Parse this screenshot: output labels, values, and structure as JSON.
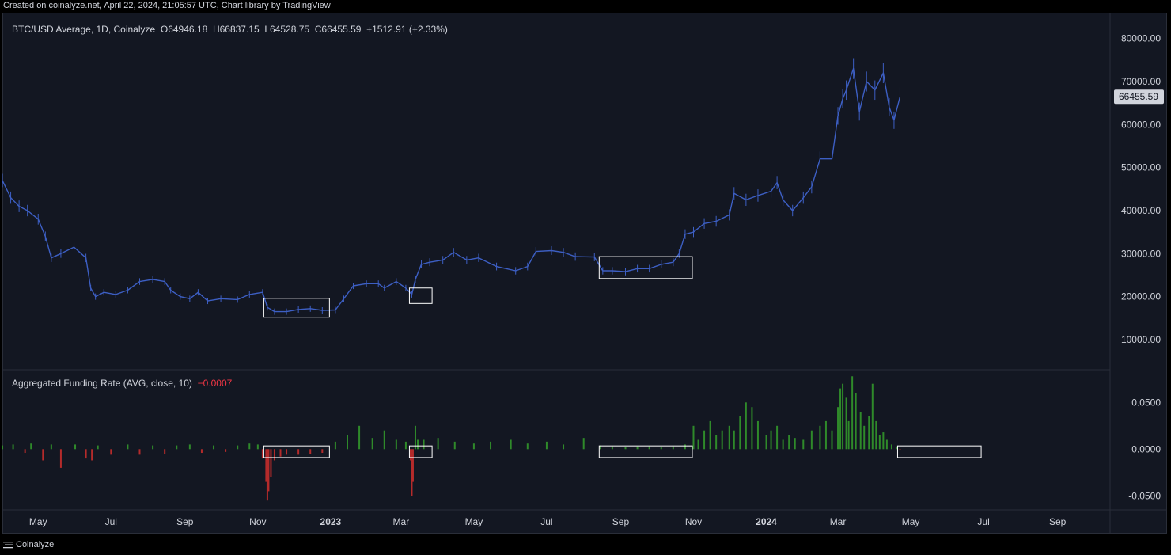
{
  "caption": "Created on coinalyze.net, April 22, 2024, 21:05:57 UTC, Chart library by TradingView",
  "brand": "Coinalyze",
  "colors": {
    "background": "#131722",
    "price_line": "#3d5fc4",
    "funding_pos": "#2f8a2a",
    "funding_neg": "#b52b2b",
    "box": "#ffffff",
    "text": "#d1d4dc"
  },
  "price_legend": {
    "symbol": "BTC/USD Average, 1D, Coinalyze",
    "open": "O64946.18",
    "high": "H66837.15",
    "low": "L64528.75",
    "close": "C66455.59",
    "change": "+1512.91 (+2.33%)"
  },
  "funding_legend": {
    "name": "Aggregated Funding Rate (AVG, close, 10)",
    "value": "−0.0007"
  },
  "last_price_label": "66455.59",
  "chart_data": [
    {
      "type": "line",
      "ylim": [
        3000,
        86000
      ],
      "xlim": [
        "2022-04-01",
        "2024-10-15"
      ],
      "y_tick_labels": [
        "10000.00",
        "20000.00",
        "30000.00",
        "40000.00",
        "50000.00",
        "60000.00",
        "70000.00",
        "80000.00"
      ],
      "x_tick_labels": [
        {
          "date": "2022-05-01",
          "label": "May",
          "bold": false
        },
        {
          "date": "2022-07-01",
          "label": "Jul",
          "bold": false
        },
        {
          "date": "2022-09-01",
          "label": "Sep",
          "bold": false
        },
        {
          "date": "2022-11-01",
          "label": "Nov",
          "bold": false
        },
        {
          "date": "2023-01-01",
          "label": "2023",
          "bold": true
        },
        {
          "date": "2023-03-01",
          "label": "Mar",
          "bold": false
        },
        {
          "date": "2023-05-01",
          "label": "May",
          "bold": false
        },
        {
          "date": "2023-07-01",
          "label": "Jul",
          "bold": false
        },
        {
          "date": "2023-09-01",
          "label": "Sep",
          "bold": false
        },
        {
          "date": "2023-11-01",
          "label": "Nov",
          "bold": false
        },
        {
          "date": "2024-01-01",
          "label": "2024",
          "bold": true
        },
        {
          "date": "2024-03-01",
          "label": "Mar",
          "bold": false
        },
        {
          "date": "2024-05-01",
          "label": "May",
          "bold": false
        },
        {
          "date": "2024-07-01",
          "label": "Jul",
          "bold": false
        },
        {
          "date": "2024-09-01",
          "label": "Sep",
          "bold": false
        }
      ],
      "series": [
        {
          "x": [
            "2022-04-01",
            "2022-04-08",
            "2022-04-15",
            "2022-04-22",
            "2022-05-01",
            "2022-05-07",
            "2022-05-12",
            "2022-05-20",
            "2022-05-31",
            "2022-06-10",
            "2022-06-14",
            "2022-06-18",
            "2022-06-25",
            "2022-07-05",
            "2022-07-15",
            "2022-07-25",
            "2022-08-05",
            "2022-08-15",
            "2022-08-20",
            "2022-08-28",
            "2022-09-05",
            "2022-09-12",
            "2022-09-20",
            "2022-10-01",
            "2022-10-15",
            "2022-10-25",
            "2022-11-05",
            "2022-11-09",
            "2022-11-15",
            "2022-11-25",
            "2022-12-05",
            "2022-12-15",
            "2022-12-25",
            "2023-01-05",
            "2023-01-12",
            "2023-01-20",
            "2023-01-31",
            "2023-02-10",
            "2023-02-15",
            "2023-02-25",
            "2023-03-05",
            "2023-03-10",
            "2023-03-13",
            "2023-03-18",
            "2023-03-25",
            "2023-04-05",
            "2023-04-14",
            "2023-04-25",
            "2023-05-05",
            "2023-05-20",
            "2023-06-05",
            "2023-06-15",
            "2023-06-22",
            "2023-07-05",
            "2023-07-15",
            "2023-07-25",
            "2023-08-10",
            "2023-08-17",
            "2023-08-25",
            "2023-09-05",
            "2023-09-15",
            "2023-09-25",
            "2023-10-05",
            "2023-10-15",
            "2023-10-20",
            "2023-10-25",
            "2023-11-01",
            "2023-11-10",
            "2023-11-20",
            "2023-12-01",
            "2023-12-05",
            "2023-12-15",
            "2023-12-25",
            "2024-01-05",
            "2024-01-10",
            "2024-01-15",
            "2024-01-23",
            "2024-02-01",
            "2024-02-08",
            "2024-02-15",
            "2024-02-25",
            "2024-03-01",
            "2024-03-05",
            "2024-03-08",
            "2024-03-14",
            "2024-03-19",
            "2024-03-25",
            "2024-04-01",
            "2024-04-08",
            "2024-04-13",
            "2024-04-17",
            "2024-04-22"
          ],
          "y": [
            47000,
            43000,
            41000,
            40000,
            38000,
            34000,
            29000,
            30000,
            31500,
            29000,
            22000,
            20000,
            21000,
            20500,
            21500,
            23500,
            24000,
            23500,
            21500,
            20000,
            19500,
            21000,
            19000,
            19500,
            19300,
            20500,
            21000,
            17500,
            16500,
            16500,
            17000,
            17200,
            16800,
            16900,
            19500,
            22500,
            23000,
            23000,
            22000,
            23500,
            22000,
            20500,
            24000,
            27500,
            28000,
            28500,
            30300,
            28500,
            29000,
            27000,
            26000,
            27000,
            30500,
            30700,
            30300,
            29300,
            29200,
            26000,
            26000,
            25800,
            26500,
            26500,
            27500,
            28000,
            30000,
            34500,
            35000,
            37000,
            37500,
            39000,
            44000,
            42500,
            43500,
            44500,
            46500,
            42500,
            40000,
            43000,
            45500,
            52000,
            52000,
            62000,
            66000,
            68000,
            73000,
            63000,
            70000,
            68000,
            72000,
            64000,
            61000,
            66455
          ]
        }
      ],
      "boxes": [
        {
          "x0": "2022-11-06",
          "x1": "2022-12-31",
          "y0": 15200,
          "y1": 19600
        },
        {
          "x0": "2023-03-08",
          "x1": "2023-03-27",
          "y0": 18400,
          "y1": 22000
        },
        {
          "x0": "2023-08-14",
          "x1": "2023-10-31",
          "y0": 24200,
          "y1": 29300
        }
      ],
      "last_price": 66455.59
    },
    {
      "type": "bar",
      "ylim": [
        -0.065,
        0.085
      ],
      "y_tick_labels": [
        "-0.0500",
        "0.0000",
        "0.0500"
      ],
      "series": [
        {
          "x": [
            "2022-04-01",
            "2022-04-10",
            "2022-04-20",
            "2022-04-25",
            "2022-05-05",
            "2022-05-12",
            "2022-05-20",
            "2022-06-01",
            "2022-06-10",
            "2022-06-15",
            "2022-06-20",
            "2022-07-01",
            "2022-07-15",
            "2022-07-25",
            "2022-08-05",
            "2022-08-15",
            "2022-08-25",
            "2022-09-05",
            "2022-09-15",
            "2022-09-25",
            "2022-10-05",
            "2022-10-15",
            "2022-10-25",
            "2022-11-01",
            "2022-11-05",
            "2022-11-08",
            "2022-11-09",
            "2022-11-10",
            "2022-11-12",
            "2022-11-15",
            "2022-11-20",
            "2022-11-25",
            "2022-12-05",
            "2022-12-15",
            "2022-12-25",
            "2023-01-05",
            "2023-01-15",
            "2023-01-25",
            "2023-02-05",
            "2023-02-15",
            "2023-02-25",
            "2023-03-05",
            "2023-03-09",
            "2023-03-10",
            "2023-03-11",
            "2023-03-13",
            "2023-03-15",
            "2023-03-20",
            "2023-04-01",
            "2023-04-15",
            "2023-05-01",
            "2023-05-15",
            "2023-06-01",
            "2023-06-15",
            "2023-07-01",
            "2023-07-15",
            "2023-08-01",
            "2023-08-15",
            "2023-08-25",
            "2023-09-05",
            "2023-09-15",
            "2023-09-25",
            "2023-10-05",
            "2023-10-15",
            "2023-10-25",
            "2023-11-01",
            "2023-11-05",
            "2023-11-10",
            "2023-11-15",
            "2023-11-20",
            "2023-11-25",
            "2023-12-01",
            "2023-12-05",
            "2023-12-10",
            "2023-12-15",
            "2023-12-20",
            "2023-12-25",
            "2024-01-01",
            "2024-01-05",
            "2024-01-10",
            "2024-01-15",
            "2024-01-20",
            "2024-01-25",
            "2024-02-01",
            "2024-02-08",
            "2024-02-15",
            "2024-02-20",
            "2024-02-25",
            "2024-03-01",
            "2024-03-03",
            "2024-03-05",
            "2024-03-08",
            "2024-03-10",
            "2024-03-13",
            "2024-03-16",
            "2024-03-20",
            "2024-03-23",
            "2024-03-27",
            "2024-03-30",
            "2024-04-02",
            "2024-04-05",
            "2024-04-08",
            "2024-04-11",
            "2024-04-15",
            "2024-04-19",
            "2024-04-22"
          ],
          "values": [
            0.004,
            0.005,
            -0.004,
            0.006,
            -0.012,
            0.005,
            -0.02,
            0.005,
            -0.01,
            -0.012,
            0.004,
            -0.006,
            0.005,
            -0.006,
            0.004,
            -0.005,
            0.004,
            0.005,
            -0.004,
            0.004,
            -0.003,
            0.004,
            0.006,
            0.005,
            -0.01,
            -0.035,
            -0.055,
            -0.045,
            -0.03,
            -0.012,
            -0.008,
            -0.006,
            -0.006,
            -0.005,
            -0.004,
            0.008,
            0.015,
            0.025,
            0.012,
            0.02,
            0.01,
            0.008,
            -0.012,
            -0.05,
            -0.035,
            0.025,
            0.01,
            0.01,
            0.012,
            0.008,
            0.006,
            0.008,
            0.01,
            0.006,
            0.008,
            0.005,
            0.012,
            0.004,
            0.003,
            0.002,
            0.003,
            0.003,
            0.002,
            0.003,
            0.005,
            0.025,
            0.01,
            0.02,
            0.03,
            0.015,
            0.02,
            0.025,
            0.02,
            0.035,
            0.05,
            0.045,
            0.03,
            0.015,
            0.02,
            0.025,
            0.01,
            0.015,
            0.012,
            0.01,
            0.02,
            0.025,
            0.03,
            0.02,
            0.045,
            0.065,
            0.07,
            0.055,
            0.03,
            0.078,
            0.06,
            0.04,
            0.025,
            0.035,
            0.07,
            0.03,
            0.015,
            0.018,
            0.01,
            0.005,
            0.003,
            -0.0007
          ]
        }
      ],
      "boxes": [
        {
          "x0": "2022-11-06",
          "x1": "2022-12-31",
          "y0": -0.009,
          "y1": 0.0035
        },
        {
          "x0": "2023-03-08",
          "x1": "2023-03-27",
          "y0": -0.009,
          "y1": 0.0035
        },
        {
          "x0": "2023-08-14",
          "x1": "2023-10-31",
          "y0": -0.009,
          "y1": 0.0035
        },
        {
          "x0": "2024-04-20",
          "x1": "2024-06-29",
          "y0": -0.009,
          "y1": 0.0035
        }
      ]
    }
  ]
}
